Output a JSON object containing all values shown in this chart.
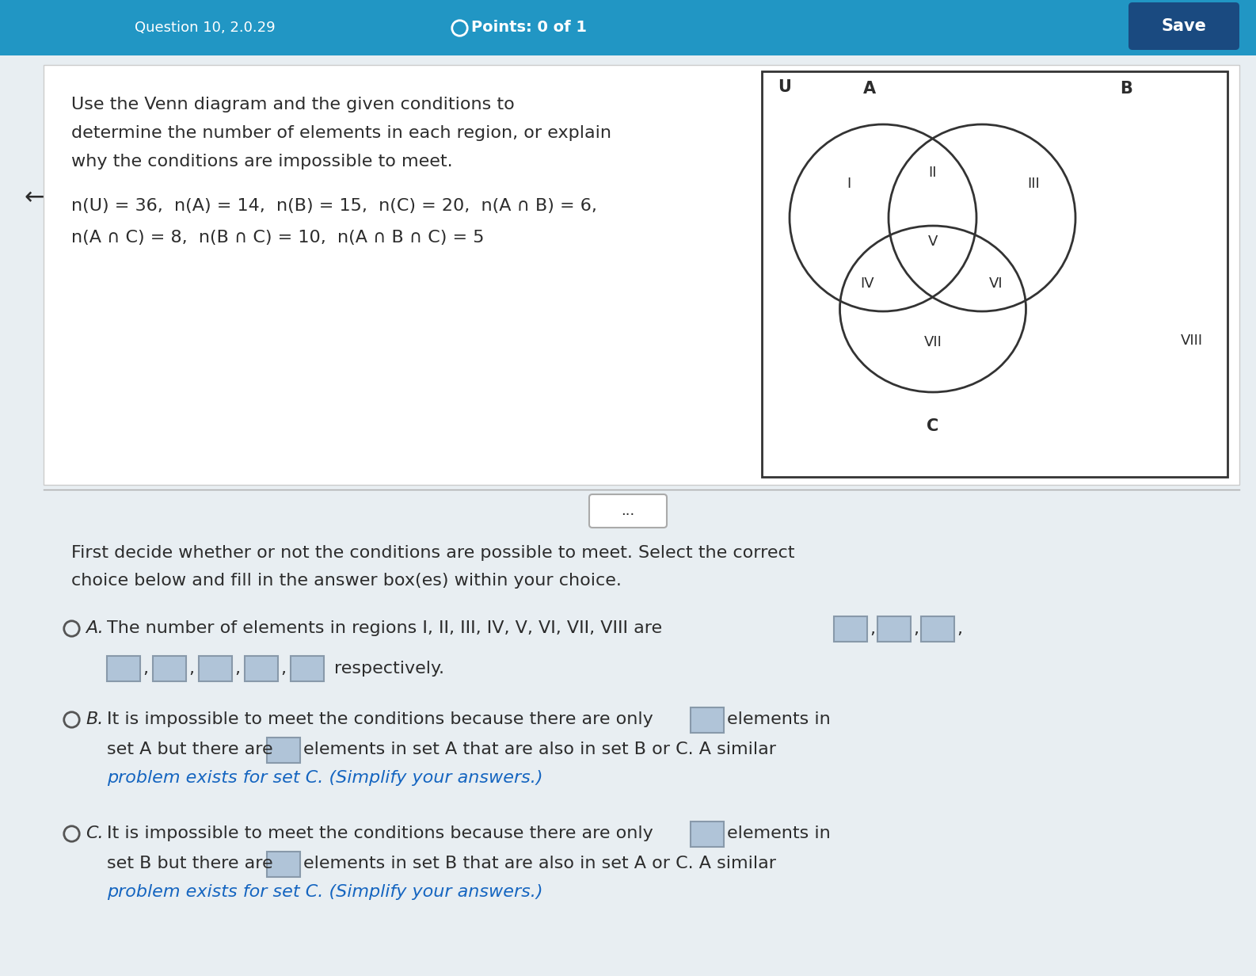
{
  "bg_color_top": "#2196C4",
  "bg_color_main": "#E8EEF2",
  "title_text": "Points: 0 of 1",
  "save_btn": "Save",
  "question_label": "Question 10, 2.0.29",
  "back_arrow": "←",
  "problem_text_line1": "Use the Venn diagram and the given conditions to",
  "problem_text_line2": "determine the number of elements in each region, or explain",
  "problem_text_line3": "why the conditions are impossible to meet.",
  "conditions_line1": "n(U) = 36,  n(A) = 14,  n(B) = 15,  n(C) = 20,  n(A ∩ B) = 6,",
  "conditions_line2": "n(A ∩ C) = 8,  n(B ∩ C) = 10,  n(A ∩ B ∩ C) = 5",
  "separator_text": "...",
  "instruction_line1": "First decide whether or not the conditions are possible to meet. Select the correct",
  "instruction_line2": "choice below and fill in the answer box(es) within your choice.",
  "option_A_line1": "The number of elements in regions I, II, III, IV, V, VI, VII, VIII are",
  "option_A_line2": "respectively.",
  "option_B_line1": "It is impossible to meet the conditions because there are only",
  "option_B_line2": "set A but there are",
  "option_B_line3": "elements in set A that are also in set B or C. A similar",
  "option_B_line4": "problem exists for set C. (Simplify your answers.)",
  "option_C_line1": "It is impossible to meet the conditions because there are only",
  "option_C_line2": "set B but there are",
  "option_C_line3": "elements in set B that are also in set A or C. A similar",
  "option_C_line4": "problem exists for set C. (Simplify your answers.)",
  "elements_in": "elements in",
  "venn_U": "U",
  "venn_A": "A",
  "venn_B": "B",
  "venn_C": "C",
  "venn_regions": [
    "I",
    "II",
    "III",
    "IV",
    "V",
    "VI",
    "VII",
    "VIII"
  ],
  "radio_color": "#555555",
  "text_color_dark": "#2C2C2C",
  "text_color_blue": "#1565C0",
  "box_color": "#B0C4D8",
  "box_border": "#8899AA",
  "venn_circle_color": "#333333",
  "venn_bg": "#FFFFFF",
  "italic_color": "#1565C0"
}
